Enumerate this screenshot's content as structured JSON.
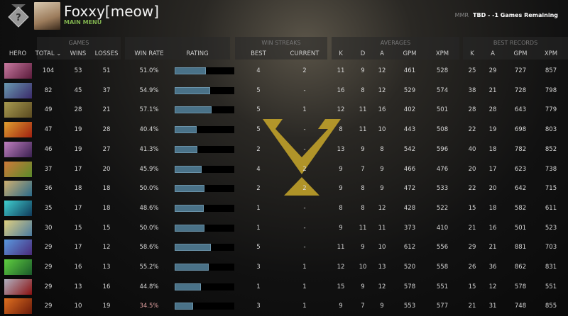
{
  "header": {
    "player_name": "Foxxy[meow]",
    "main_menu": "MAIN MENU",
    "mmr_label": "MMR",
    "mmr_value": "TBD - -1 Games Remaining"
  },
  "groups": {
    "games": "GAMES",
    "win_streaks": "WIN STREAKS",
    "averages": "AVERAGES",
    "best_records": "BEST RECORDS"
  },
  "columns": {
    "hero": "HERO",
    "total": "TOTAL ⌄",
    "wins": "WINS",
    "losses": "LOSSES",
    "win_rate": "WIN RATE",
    "rating": "RATING",
    "best": "BEST",
    "current": "CURRENT",
    "k": "K",
    "d": "D",
    "a": "A",
    "gpm": "GPM",
    "xpm": "XPM",
    "best_k": "K",
    "best_a": "A",
    "best_gpm": "GPM",
    "best_xpm": "XPM"
  },
  "colors": {
    "accent_green": "#7fb04e",
    "rating_bar": "#4a7288",
    "low_winrate": "#e0a0a0"
  },
  "rows": [
    {
      "total": "104",
      "wins": "53",
      "losses": "51",
      "win_rate": "51.0%",
      "rating": 0.52,
      "best": "4",
      "current": "2",
      "k": "11",
      "d": "9",
      "a": "12",
      "gpm": "461",
      "xpm": "528",
      "bk": "25",
      "ba": "29",
      "bgpm": "727",
      "bxpm": "857",
      "c1": "#c87aa0",
      "c2": "#5a1a3a"
    },
    {
      "total": "82",
      "wins": "45",
      "losses": "37",
      "win_rate": "54.9%",
      "rating": 0.6,
      "best": "5",
      "current": "-",
      "k": "16",
      "d": "8",
      "a": "12",
      "gpm": "529",
      "xpm": "574",
      "bk": "38",
      "ba": "21",
      "bgpm": "728",
      "bxpm": "798",
      "c1": "#6a9ab0",
      "c2": "#3a2a6a"
    },
    {
      "total": "49",
      "wins": "28",
      "losses": "21",
      "win_rate": "57.1%",
      "rating": 0.62,
      "best": "5",
      "current": "1",
      "k": "12",
      "d": "11",
      "a": "16",
      "gpm": "402",
      "xpm": "501",
      "bk": "28",
      "ba": "28",
      "bgpm": "643",
      "bxpm": "779",
      "c1": "#a89a50",
      "c2": "#5a4a20"
    },
    {
      "total": "47",
      "wins": "19",
      "losses": "28",
      "win_rate": "40.4%",
      "rating": 0.37,
      "best": "5",
      "current": "-",
      "k": "8",
      "d": "11",
      "a": "10",
      "gpm": "443",
      "xpm": "508",
      "bk": "22",
      "ba": "19",
      "bgpm": "698",
      "bxpm": "803",
      "c1": "#e0a030",
      "c2": "#a02010"
    },
    {
      "total": "46",
      "wins": "19",
      "losses": "27",
      "win_rate": "41.3%",
      "rating": 0.38,
      "best": "2",
      "current": "-",
      "k": "13",
      "d": "9",
      "a": "8",
      "gpm": "542",
      "xpm": "596",
      "bk": "40",
      "ba": "18",
      "bgpm": "782",
      "bxpm": "852",
      "c1": "#c080c0",
      "c2": "#3a2050"
    },
    {
      "total": "37",
      "wins": "17",
      "losses": "20",
      "win_rate": "45.9%",
      "rating": 0.45,
      "best": "4",
      "current": "2",
      "k": "9",
      "d": "7",
      "a": "9",
      "gpm": "466",
      "xpm": "476",
      "bk": "20",
      "ba": "17",
      "bgpm": "623",
      "bxpm": "738",
      "c1": "#d07a3a",
      "c2": "#5a8a2a"
    },
    {
      "total": "36",
      "wins": "18",
      "losses": "18",
      "win_rate": "50.0%",
      "rating": 0.5,
      "best": "2",
      "current": "2",
      "k": "9",
      "d": "8",
      "a": "9",
      "gpm": "472",
      "xpm": "533",
      "bk": "22",
      "ba": "20",
      "bgpm": "642",
      "bxpm": "715",
      "c1": "#d0b070",
      "c2": "#2a6a8a"
    },
    {
      "total": "35",
      "wins": "17",
      "losses": "18",
      "win_rate": "48.6%",
      "rating": 0.49,
      "best": "1",
      "current": "-",
      "k": "8",
      "d": "8",
      "a": "12",
      "gpm": "428",
      "xpm": "522",
      "bk": "15",
      "ba": "18",
      "bgpm": "582",
      "bxpm": "611",
      "c1": "#40d0d0",
      "c2": "#103a5a"
    },
    {
      "total": "30",
      "wins": "15",
      "losses": "15",
      "win_rate": "50.0%",
      "rating": 0.5,
      "best": "1",
      "current": "-",
      "k": "9",
      "d": "11",
      "a": "11",
      "gpm": "373",
      "xpm": "410",
      "bk": "21",
      "ba": "16",
      "bgpm": "501",
      "bxpm": "523",
      "c1": "#e0d080",
      "c2": "#4a7aa0"
    },
    {
      "total": "29",
      "wins": "17",
      "losses": "12",
      "win_rate": "58.6%",
      "rating": 0.61,
      "best": "5",
      "current": "-",
      "k": "11",
      "d": "9",
      "a": "10",
      "gpm": "612",
      "xpm": "556",
      "bk": "29",
      "ba": "21",
      "bgpm": "881",
      "bxpm": "703",
      "c1": "#5a9ae0",
      "c2": "#4a2a7a"
    },
    {
      "total": "29",
      "wins": "16",
      "losses": "13",
      "win_rate": "55.2%",
      "rating": 0.57,
      "best": "3",
      "current": "1",
      "k": "12",
      "d": "10",
      "a": "13",
      "gpm": "520",
      "xpm": "558",
      "bk": "26",
      "ba": "36",
      "bgpm": "862",
      "bxpm": "831",
      "c1": "#60d040",
      "c2": "#1a5a2a"
    },
    {
      "total": "29",
      "wins": "13",
      "losses": "16",
      "win_rate": "44.8%",
      "rating": 0.44,
      "best": "1",
      "current": "1",
      "k": "15",
      "d": "9",
      "a": "12",
      "gpm": "578",
      "xpm": "551",
      "bk": "15",
      "ba": "12",
      "bgpm": "578",
      "bxpm": "551",
      "c1": "#b0b0c0",
      "c2": "#8a1010"
    },
    {
      "total": "29",
      "wins": "10",
      "losses": "19",
      "win_rate": "34.5%",
      "rating": 0.31,
      "best": "3",
      "current": "1",
      "k": "9",
      "d": "7",
      "a": "9",
      "gpm": "553",
      "xpm": "577",
      "bk": "21",
      "ba": "31",
      "bgpm": "748",
      "bxpm": "855",
      "c1": "#e07020",
      "c2": "#6a1a0a",
      "low": true
    }
  ]
}
